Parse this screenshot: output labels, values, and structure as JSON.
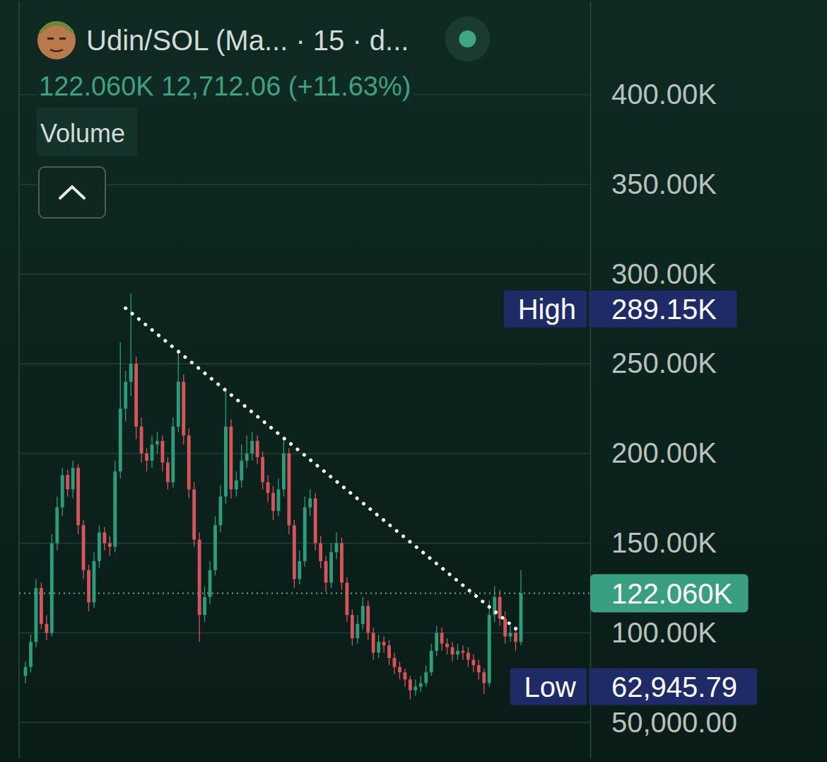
{
  "chart_data": {
    "type": "candlestick",
    "title": "Udin/SOL (Ma... · 15 · d...",
    "subtitle": "122.060K 12,712.06 (+11.63%)",
    "categories": [
      null,
      null,
      null,
      null,
      null,
      null,
      null,
      null,
      null,
      null,
      null,
      null,
      null,
      null,
      null,
      null,
      null,
      null,
      null,
      null,
      null,
      null,
      null,
      null,
      null,
      null,
      null,
      null,
      null,
      null,
      null,
      null,
      null,
      null,
      null,
      null,
      null,
      null,
      null,
      null,
      null,
      null,
      null,
      null,
      null,
      null,
      null,
      null,
      null,
      null,
      null,
      null,
      null,
      null,
      null,
      null,
      null,
      null,
      null,
      null,
      null,
      null,
      null,
      null,
      null,
      null,
      null,
      null,
      null,
      null,
      null,
      null,
      null,
      null,
      null,
      null,
      null,
      null,
      null,
      null,
      null,
      null,
      null,
      null,
      null,
      null,
      null,
      null,
      null,
      null,
      null,
      null,
      null,
      null,
      null
    ],
    "open": [
      76000,
      81000,
      95000,
      125000,
      105000,
      100000,
      150000,
      170000,
      188000,
      180000,
      192000,
      160000,
      135000,
      117000,
      140000,
      156000,
      150000,
      148000,
      190000,
      225000,
      240000,
      250000,
      215000,
      200000,
      196000,
      205000,
      207000,
      195000,
      184000,
      215000,
      240000,
      210000,
      180000,
      152000,
      110000,
      120000,
      135000,
      160000,
      176000,
      215000,
      180000,
      185000,
      196000,
      200000,
      207000,
      198000,
      184000,
      178000,
      168000,
      180000,
      200000,
      160000,
      130000,
      140000,
      170000,
      175000,
      150000,
      140000,
      128000,
      145000,
      150000,
      128000,
      110000,
      97000,
      105000,
      115000,
      100000,
      89000,
      95000,
      93000,
      86000,
      81000,
      78000,
      74000,
      68000,
      70000,
      72000,
      78000,
      90000,
      100000,
      94000,
      92000,
      88000,
      90000,
      89000,
      85000,
      82000,
      78000,
      72000,
      110000,
      120000,
      108000,
      98000,
      100000,
      95000
    ],
    "high": [
      84000,
      99000,
      130000,
      128000,
      110000,
      155000,
      176000,
      192000,
      191000,
      196000,
      194000,
      163000,
      138000,
      145000,
      160000,
      159000,
      154000,
      196000,
      262000,
      246000,
      289150,
      254000,
      220000,
      203000,
      210000,
      212000,
      210000,
      198000,
      220000,
      258000,
      244000,
      214000,
      184000,
      156000,
      126000,
      140000,
      165000,
      182000,
      235000,
      219000,
      190000,
      205000,
      210000,
      212000,
      210000,
      201000,
      188000,
      182000,
      186000,
      208000,
      203000,
      163000,
      146000,
      176000,
      180000,
      178000,
      154000,
      143000,
      150000,
      156000,
      153000,
      131000,
      113000,
      110000,
      120000,
      118000,
      103000,
      99000,
      98000,
      96000,
      89000,
      84000,
      80000,
      76000,
      74000,
      76000,
      82000,
      94000,
      104000,
      103000,
      97000,
      95000,
      94000,
      93000,
      92000,
      88000,
      85000,
      80000,
      118000,
      126000,
      124000,
      112000,
      104000,
      103000,
      135000
    ],
    "low": [
      72000,
      78000,
      92000,
      102000,
      96000,
      98000,
      146000,
      165000,
      176000,
      175000,
      155000,
      130000,
      112000,
      114000,
      136000,
      146000,
      143000,
      145000,
      186000,
      218000,
      232000,
      208000,
      195000,
      190000,
      192000,
      200000,
      190000,
      180000,
      181000,
      212000,
      205000,
      175000,
      148000,
      95000,
      106000,
      116000,
      132000,
      156000,
      172000,
      175000,
      176000,
      181000,
      192000,
      196000,
      194000,
      180000,
      173000,
      163000,
      165000,
      176000,
      155000,
      125000,
      127000,
      137000,
      165000,
      146000,
      136000,
      123000,
      125000,
      141000,
      124000,
      106000,
      93000,
      94000,
      102000,
      96000,
      85000,
      86000,
      89000,
      82000,
      77000,
      74000,
      70000,
      62945.79,
      65000,
      67000,
      70000,
      76000,
      87000,
      90000,
      88000,
      84000,
      85000,
      85000,
      81000,
      78000,
      74000,
      66000,
      70000,
      106000,
      104000,
      94000,
      95000,
      90000,
      93000
    ],
    "close": [
      81000,
      95000,
      125000,
      105000,
      100000,
      150000,
      170000,
      188000,
      180000,
      192000,
      160000,
      135000,
      117000,
      140000,
      156000,
      150000,
      148000,
      190000,
      225000,
      240000,
      250000,
      215000,
      200000,
      196000,
      205000,
      207000,
      195000,
      184000,
      215000,
      240000,
      210000,
      180000,
      152000,
      110000,
      120000,
      135000,
      160000,
      176000,
      215000,
      180000,
      185000,
      196000,
      200000,
      207000,
      198000,
      184000,
      178000,
      168000,
      180000,
      200000,
      160000,
      130000,
      140000,
      170000,
      175000,
      150000,
      140000,
      128000,
      145000,
      150000,
      128000,
      110000,
      97000,
      105000,
      115000,
      100000,
      89000,
      95000,
      93000,
      86000,
      81000,
      78000,
      74000,
      68000,
      70000,
      72000,
      78000,
      90000,
      100000,
      94000,
      92000,
      88000,
      90000,
      89000,
      85000,
      82000,
      78000,
      72000,
      110000,
      120000,
      108000,
      98000,
      100000,
      95000,
      122060
    ],
    "ylim": [
      30000,
      452000
    ],
    "yticks": [
      {
        "value": 50000,
        "label": "50,000.00"
      },
      {
        "value": 100000,
        "label": "100.00K"
      },
      {
        "value": 150000,
        "label": "150.00K"
      },
      {
        "value": 200000,
        "label": "200.00K"
      },
      {
        "value": 250000,
        "label": "250.00K"
      },
      {
        "value": 300000,
        "label": "300.00K"
      },
      {
        "value": 350000,
        "label": "350.00K"
      },
      {
        "value": 400000,
        "label": "400.00K"
      }
    ],
    "grid": true,
    "tick_labels": "y",
    "annotations": [
      {
        "text": "Volume"
      },
      {
        "text": "High",
        "value": 289150,
        "label": "289.15K"
      },
      {
        "text": "Low",
        "value": 62945.79,
        "label": "62,945.79"
      },
      {
        "label": "122.060K",
        "value": 122060
      }
    ],
    "trendline": {
      "x": [
        19,
        94
      ],
      "values": [
        281000,
        100000
      ],
      "line_style": "dotted"
    }
  }
}
